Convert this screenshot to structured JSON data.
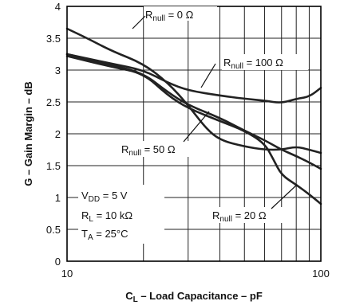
{
  "chart_data": {
    "type": "line",
    "xscale": "log",
    "xlim": [
      10,
      100
    ],
    "ylim": [
      0,
      4
    ],
    "grid": true,
    "xlabel": {
      "main": "C",
      "sub": "L",
      "rest": " – Load Capacitance – pF"
    },
    "ylabel": "G – Gain Margin – dB",
    "x_ticks": [
      10,
      100
    ],
    "y_ticks": [
      "0",
      "0.5",
      "1",
      "1.5",
      "2",
      "2.5",
      "3",
      "3.5",
      "4"
    ],
    "series": [
      {
        "name": {
          "main": "R",
          "sub": "null",
          "rest": " = 0 Ω"
        },
        "points": [
          [
            10,
            3.65
          ],
          [
            12,
            3.5
          ],
          [
            15,
            3.3
          ],
          [
            20,
            3.1
          ],
          [
            25,
            2.8
          ],
          [
            30,
            2.45
          ],
          [
            35,
            2.1
          ],
          [
            40,
            1.9
          ],
          [
            50,
            1.8
          ],
          [
            60,
            1.75
          ],
          [
            70,
            1.75
          ],
          [
            80,
            1.8
          ],
          [
            90,
            1.75
          ],
          [
            100,
            1.7
          ]
        ]
      },
      {
        "name": {
          "main": "R",
          "sub": "null",
          "rest": " = 100 Ω"
        },
        "points": [
          [
            10,
            3.25
          ],
          [
            15,
            3.1
          ],
          [
            20,
            3.0
          ],
          [
            25,
            2.8
          ],
          [
            30,
            2.68
          ],
          [
            40,
            2.6
          ],
          [
            50,
            2.55
          ],
          [
            60,
            2.52
          ],
          [
            70,
            2.48
          ],
          [
            80,
            2.55
          ],
          [
            90,
            2.58
          ],
          [
            100,
            2.72
          ]
        ]
      },
      {
        "name": {
          "main": "R",
          "sub": "null",
          "rest": " = 50 Ω"
        },
        "points": [
          [
            10,
            3.25
          ],
          [
            15,
            3.08
          ],
          [
            20,
            2.95
          ],
          [
            25,
            2.65
          ],
          [
            30,
            2.45
          ],
          [
            40,
            2.25
          ],
          [
            50,
            2.05
          ],
          [
            60,
            1.9
          ],
          [
            70,
            1.75
          ],
          [
            80,
            1.65
          ],
          [
            90,
            1.55
          ],
          [
            100,
            1.45
          ]
        ]
      },
      {
        "name": {
          "main": "R",
          "sub": "null",
          "rest": " = 20 Ω"
        },
        "points": [
          [
            10,
            3.22
          ],
          [
            15,
            3.05
          ],
          [
            20,
            2.95
          ],
          [
            25,
            2.6
          ],
          [
            30,
            2.4
          ],
          [
            40,
            2.2
          ],
          [
            50,
            2.05
          ],
          [
            60,
            1.85
          ],
          [
            65,
            1.6
          ],
          [
            70,
            1.35
          ],
          [
            80,
            1.2
          ],
          [
            90,
            1.05
          ],
          [
            100,
            0.9
          ]
        ]
      }
    ],
    "conditions": [
      {
        "main": "V",
        "sub": "DD",
        "rest": " = 5 V"
      },
      {
        "main": "R",
        "sub": "L",
        "rest": " = 10 kΩ"
      },
      {
        "main": "T",
        "sub": "A",
        "rest": " = 25°C"
      }
    ]
  }
}
